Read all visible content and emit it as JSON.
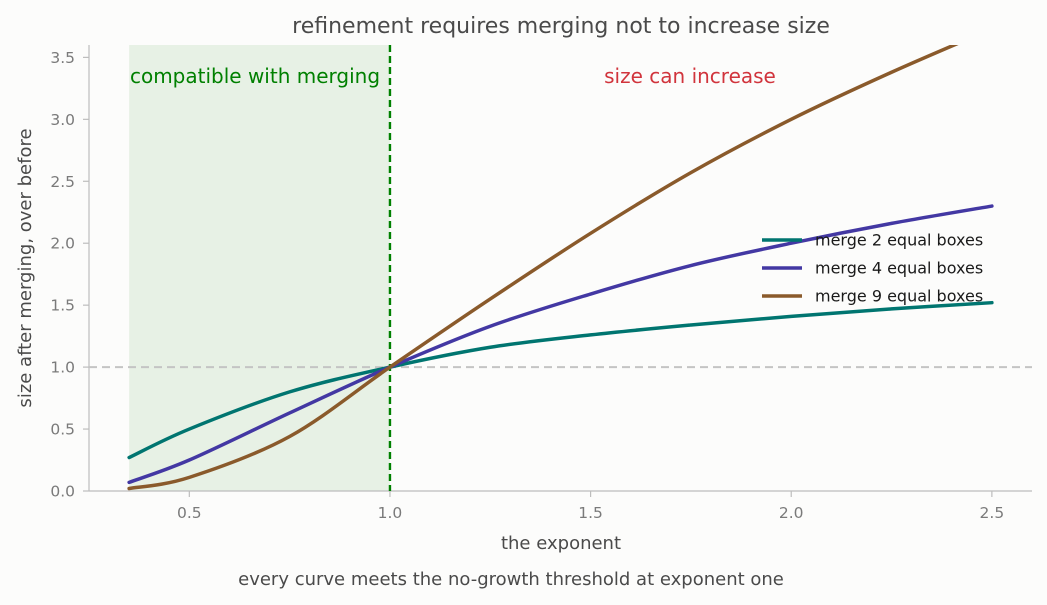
{
  "chart_data": {
    "type": "line",
    "title": "refinement requires merging not to increase size",
    "xlabel": "the exponent",
    "ylabel": "size after merging, over before",
    "xlim": [
      0.25,
      2.6
    ],
    "ylim": [
      0,
      3.6
    ],
    "x_ticks": [
      0.5,
      1.0,
      1.5,
      2.0,
      2.5
    ],
    "x_tick_labels": [
      "0.5",
      "1.0",
      "1.5",
      "2.0",
      "2.5"
    ],
    "y_ticks": [
      0.0,
      0.5,
      1.0,
      1.5,
      2.0,
      2.5,
      3.0,
      3.5
    ],
    "y_tick_labels": [
      "0.0",
      "0.5",
      "1.0",
      "1.5",
      "2.0",
      "2.5",
      "3.0",
      "3.5"
    ],
    "grid": false,
    "legend_position": "right",
    "x": [
      0.35,
      0.5,
      0.75,
      1.0,
      1.25,
      1.5,
      1.75,
      2.0,
      2.25,
      2.5
    ],
    "series": [
      {
        "name": "merge 2 equal boxes",
        "color": "#007570",
        "values": [
          0.27,
          0.5,
          0.8,
          1.0,
          1.16,
          1.26,
          1.34,
          1.41,
          1.47,
          1.52
        ]
      },
      {
        "name": "merge 4 equal boxes",
        "color": "#4338a3",
        "values": [
          0.07,
          0.25,
          0.63,
          1.0,
          1.33,
          1.59,
          1.82,
          2.0,
          2.16,
          2.3
        ]
      },
      {
        "name": "merge 9 equal boxes",
        "color": "#8a5a2b",
        "values": [
          0.02,
          0.11,
          0.44,
          1.0,
          1.55,
          2.08,
          2.57,
          3.0,
          3.38,
          3.73
        ]
      }
    ],
    "threshold_y": 1.0,
    "threshold_x": 1.0,
    "shaded_region_x": [
      0.35,
      1.0
    ],
    "annotations": {
      "compatible": {
        "text": "compatible with merging",
        "color": "#008000"
      },
      "increase": {
        "text": "size can increase",
        "color": "#d1343c"
      }
    },
    "footnote": "every curve meets the no-growth threshold at exponent one"
  }
}
